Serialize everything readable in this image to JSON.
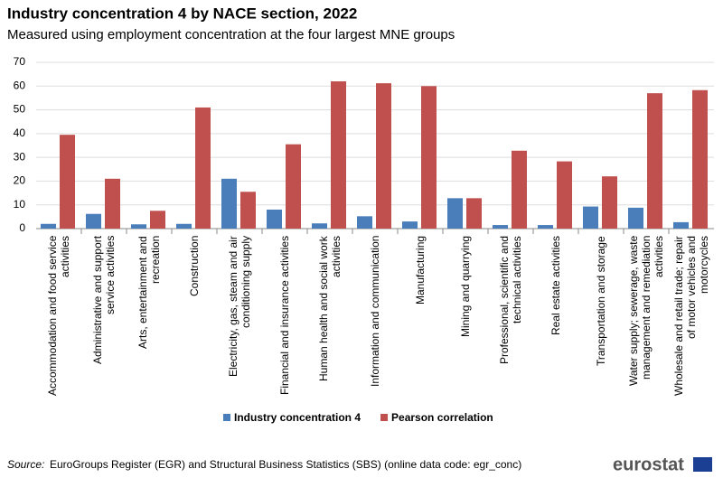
{
  "chart_data": {
    "type": "bar",
    "title": "Industry concentration 4 by NACE section, 2022",
    "subtitle": "Measured using employment concentration at the four largest MNE groups",
    "categories": [
      "Accommodation and food service activities",
      "Administrative and support service activities",
      "Arts, entertainment and recreation",
      "Construction",
      "Electricity, gas, steam and air conditioning supply",
      "Financial and insurance activities",
      "Human health and social work activities",
      "Information and communication",
      "Manufacturing",
      "Mining and quarrying",
      "Professional, scientific and technical activities",
      "Real estate activities",
      "Transportation and storage",
      "Water supply; sewerage, waste management and remediation activities",
      "Wholesale and retail trade; repair of motor vehicles and motorcycles"
    ],
    "series": [
      {
        "name": "Industry concentration 4",
        "color": "#4a7ebb",
        "values": [
          2,
          6.2,
          1.8,
          2,
          21,
          8,
          2.2,
          5.2,
          3,
          12.8,
          1.5,
          1.5,
          9.3,
          8.8,
          2.7
        ]
      },
      {
        "name": "Pearson correlation",
        "color": "#c0504d",
        "values": [
          39.5,
          21,
          7.5,
          51,
          15.5,
          35.5,
          62,
          61.2,
          60,
          12.8,
          32.8,
          28.3,
          22,
          57,
          58.3
        ]
      }
    ],
    "ylim": [
      0,
      70
    ],
    "yticks": [
      0,
      10,
      20,
      30,
      40,
      50,
      60,
      70
    ],
    "grid": true,
    "legend": "bottom",
    "source_label": "Source:",
    "source": "EuroGroups Register (EGR) and Structural Business Statistics (SBS)  (online data code: egr_conc)",
    "logo": "eurostat"
  }
}
